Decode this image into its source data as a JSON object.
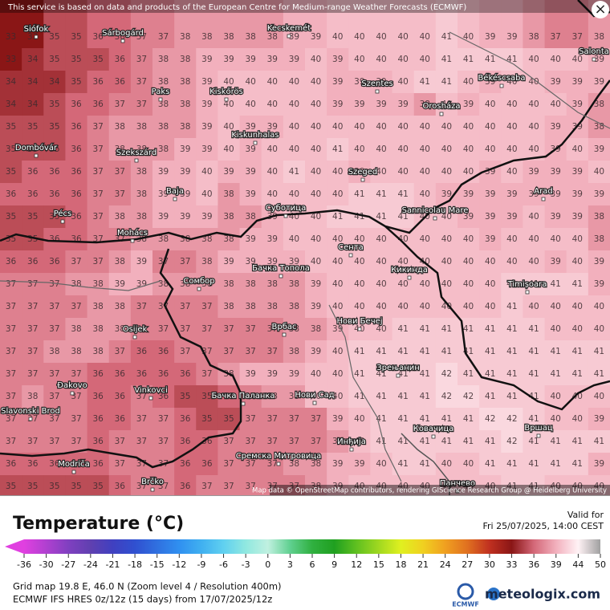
{
  "map": {
    "disclaimer": "This service is based on data and products of the European Centre for Medium-range Weather Forecasts (ECMWF)",
    "attribution": "Map data © OpenStreetMap contributors, rendering GIScience Research Group @ Heidelberg University",
    "close": "×",
    "rows": [
      [
        33,
        33,
        35,
        35,
        36,
        36,
        37,
        37,
        38,
        38,
        38,
        38,
        38,
        39,
        39,
        40,
        40,
        40,
        40,
        40,
        41,
        40,
        39,
        39,
        38,
        37,
        37,
        38
      ],
      [
        33,
        34,
        35,
        35,
        35,
        36,
        37,
        38,
        38,
        39,
        39,
        39,
        39,
        39,
        40,
        39,
        40,
        40,
        40,
        40,
        41,
        41,
        41,
        41,
        40,
        40,
        40,
        39
      ],
      [
        34,
        34,
        34,
        35,
        36,
        36,
        37,
        38,
        38,
        39,
        40,
        40,
        40,
        40,
        40,
        39,
        39,
        39,
        40,
        41,
        41,
        40,
        39,
        40,
        40,
        39,
        39,
        39
      ],
      [
        34,
        34,
        35,
        36,
        36,
        37,
        37,
        38,
        38,
        39,
        40,
        40,
        40,
        40,
        40,
        39,
        39,
        39,
        39,
        38,
        40,
        39,
        40,
        40,
        40,
        40,
        39,
        38
      ],
      [
        35,
        35,
        35,
        36,
        37,
        38,
        38,
        38,
        38,
        39,
        40,
        39,
        39,
        40,
        40,
        40,
        40,
        40,
        40,
        40,
        40,
        40,
        40,
        40,
        40,
        39,
        39,
        38
      ],
      [
        35,
        35,
        35,
        36,
        37,
        38,
        38,
        38,
        39,
        39,
        40,
        39,
        40,
        40,
        40,
        41,
        40,
        40,
        40,
        40,
        40,
        40,
        40,
        40,
        40,
        39,
        40,
        39
      ],
      [
        35,
        36,
        36,
        36,
        37,
        37,
        38,
        39,
        39,
        40,
        39,
        39,
        40,
        41,
        40,
        40,
        39,
        40,
        40,
        40,
        40,
        40,
        39,
        40,
        39,
        39,
        39,
        40
      ],
      [
        36,
        36,
        36,
        36,
        37,
        37,
        38,
        39,
        39,
        40,
        38,
        39,
        40,
        40,
        40,
        40,
        41,
        41,
        41,
        40,
        39,
        39,
        39,
        39,
        39,
        39,
        39,
        39
      ],
      [
        35,
        35,
        35,
        36,
        37,
        38,
        38,
        39,
        39,
        39,
        38,
        38,
        39,
        40,
        40,
        41,
        41,
        41,
        41,
        40,
        40,
        39,
        39,
        39,
        40,
        39,
        39,
        38
      ],
      [
        35,
        35,
        36,
        36,
        37,
        37,
        38,
        38,
        38,
        38,
        38,
        39,
        39,
        40,
        40,
        40,
        40,
        40,
        40,
        40,
        40,
        40,
        39,
        40,
        40,
        40,
        40,
        38
      ],
      [
        36,
        36,
        36,
        37,
        37,
        38,
        39,
        37,
        37,
        38,
        39,
        39,
        39,
        39,
        40,
        40,
        40,
        40,
        40,
        40,
        40,
        40,
        40,
        40,
        40,
        39,
        40,
        39
      ],
      [
        37,
        37,
        37,
        38,
        38,
        39,
        39,
        38,
        38,
        38,
        38,
        38,
        38,
        38,
        39,
        40,
        40,
        40,
        40,
        40,
        40,
        40,
        40,
        41,
        41,
        41,
        41,
        39
      ],
      [
        37,
        37,
        37,
        37,
        38,
        38,
        37,
        37,
        37,
        37,
        38,
        38,
        38,
        38,
        39,
        40,
        40,
        40,
        40,
        40,
        40,
        40,
        40,
        41,
        40,
        40,
        40,
        40
      ],
      [
        37,
        37,
        37,
        38,
        38,
        38,
        37,
        37,
        37,
        37,
        37,
        37,
        37,
        38,
        38,
        39,
        40,
        40,
        41,
        41,
        41,
        41,
        41,
        41,
        41,
        40,
        40,
        40
      ],
      [
        37,
        37,
        38,
        38,
        38,
        37,
        36,
        36,
        37,
        37,
        37,
        37,
        37,
        38,
        39,
        40,
        41,
        41,
        41,
        41,
        41,
        41,
        41,
        41,
        41,
        41,
        41,
        41
      ],
      [
        37,
        37,
        37,
        37,
        36,
        36,
        36,
        36,
        36,
        37,
        38,
        39,
        39,
        39,
        40,
        40,
        41,
        41,
        41,
        41,
        42,
        41,
        41,
        41,
        41,
        41,
        41,
        41
      ],
      [
        37,
        38,
        37,
        37,
        36,
        36,
        37,
        36,
        35,
        35,
        36,
        37,
        38,
        38,
        40,
        40,
        41,
        41,
        41,
        41,
        42,
        42,
        41,
        41,
        41,
        40,
        40,
        40
      ],
      [
        37,
        37,
        37,
        37,
        36,
        36,
        37,
        37,
        36,
        35,
        35,
        37,
        37,
        37,
        37,
        39,
        40,
        41,
        41,
        41,
        41,
        41,
        42,
        42,
        41,
        40,
        40,
        39
      ],
      [
        37,
        37,
        37,
        37,
        36,
        37,
        37,
        37,
        36,
        36,
        37,
        37,
        37,
        37,
        37,
        38,
        40,
        41,
        41,
        41,
        41,
        41,
        41,
        42,
        41,
        41,
        41,
        41
      ],
      [
        36,
        36,
        36,
        36,
        36,
        37,
        37,
        37,
        36,
        36,
        37,
        37,
        37,
        38,
        38,
        39,
        39,
        40,
        41,
        41,
        40,
        40,
        41,
        41,
        41,
        41,
        41,
        39
      ],
      [
        35,
        35,
        35,
        35,
        35,
        36,
        37,
        37,
        36,
        37,
        37,
        37,
        37,
        37,
        38,
        39,
        40,
        40,
        40,
        40,
        40,
        40,
        40,
        41,
        41,
        40,
        40,
        40
      ]
    ],
    "cities": [
      "Siófok",
      "Sárbogárd",
      "Kecskemét",
      "Paks",
      "Kiskőrös",
      "Szentes",
      "Orosháza",
      "Békéscsaba",
      "Salonta",
      "Kiskunhalas",
      "Dombóvár",
      "Szekszárd",
      "Szeged",
      "Baja",
      "Суботица",
      "Arad",
      "Pécs",
      "Sannicolau Mare",
      "Mohács",
      "Сента",
      "Бачка Топола",
      "Кикинда",
      "Сомбор",
      "Timișoara",
      "Osijek",
      "Врбас",
      "Нови Бечеј",
      "Зрењанин",
      "Vinkovci",
      "Đakovo",
      "Бачка Паланка",
      "Нови Сад",
      "Slavonski Brod",
      "Ковачица",
      "Инђија",
      "Вршац",
      "Сремска Митровица",
      "Modriča",
      "Brčko",
      "Панчево"
    ]
  },
  "legend": {
    "title": "Temperature (°C)",
    "valid_label": "Valid for",
    "valid_time": "Fri 25/07/2025, 14:00 CEST",
    "ticks": [
      -36,
      -30,
      -27,
      -24,
      -21,
      -18,
      -15,
      -12,
      -9,
      -6,
      -3,
      0,
      3,
      6,
      9,
      12,
      15,
      18,
      21,
      24,
      27,
      30,
      33,
      36,
      39,
      44,
      50
    ],
    "colors": [
      "#e040e0",
      "#b040d0",
      "#8040c0",
      "#6040b0",
      "#4040c0",
      "#3050d0",
      "#3070e0",
      "#3090f0",
      "#40b0f0",
      "#60d0f0",
      "#90e8e0",
      "#c0f0e0",
      "#60d090",
      "#30b040",
      "#20a020",
      "#60c020",
      "#a0d820",
      "#e0f020",
      "#f0d020",
      "#f0a020",
      "#e07020",
      "#c03020",
      "#8a1616",
      "#d46878",
      "#f2b0bd",
      "#fff2f5",
      "#a0a0a0"
    ]
  },
  "footer": {
    "grid_info": "Grid map 19.8 E, 46.0 N (Zoom level 4 / Resolution 400m)",
    "model_info": "ECMWF IFS HRES 0z/12z (15 days) from 17/07/2025/12z",
    "ecmwf": "ECMWF",
    "brand": "meteologix.com"
  }
}
